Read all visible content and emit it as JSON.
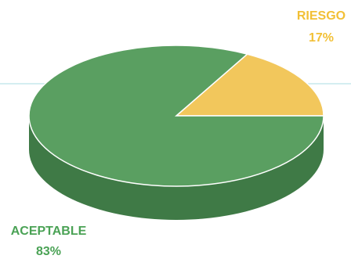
{
  "chart_data": {
    "type": "pie",
    "style": "3d",
    "title": "",
    "slices": [
      {
        "label": "RIESGO",
        "value": 17,
        "display": "17%",
        "color": "#f2c75c",
        "label_color": "#f2c036"
      },
      {
        "label": "ACEPTABLE",
        "value": 83,
        "display": "83%",
        "color": "#5a9f61",
        "label_color": "#4aa255"
      }
    ],
    "side_color": "#3f7a46",
    "legend": "none"
  }
}
